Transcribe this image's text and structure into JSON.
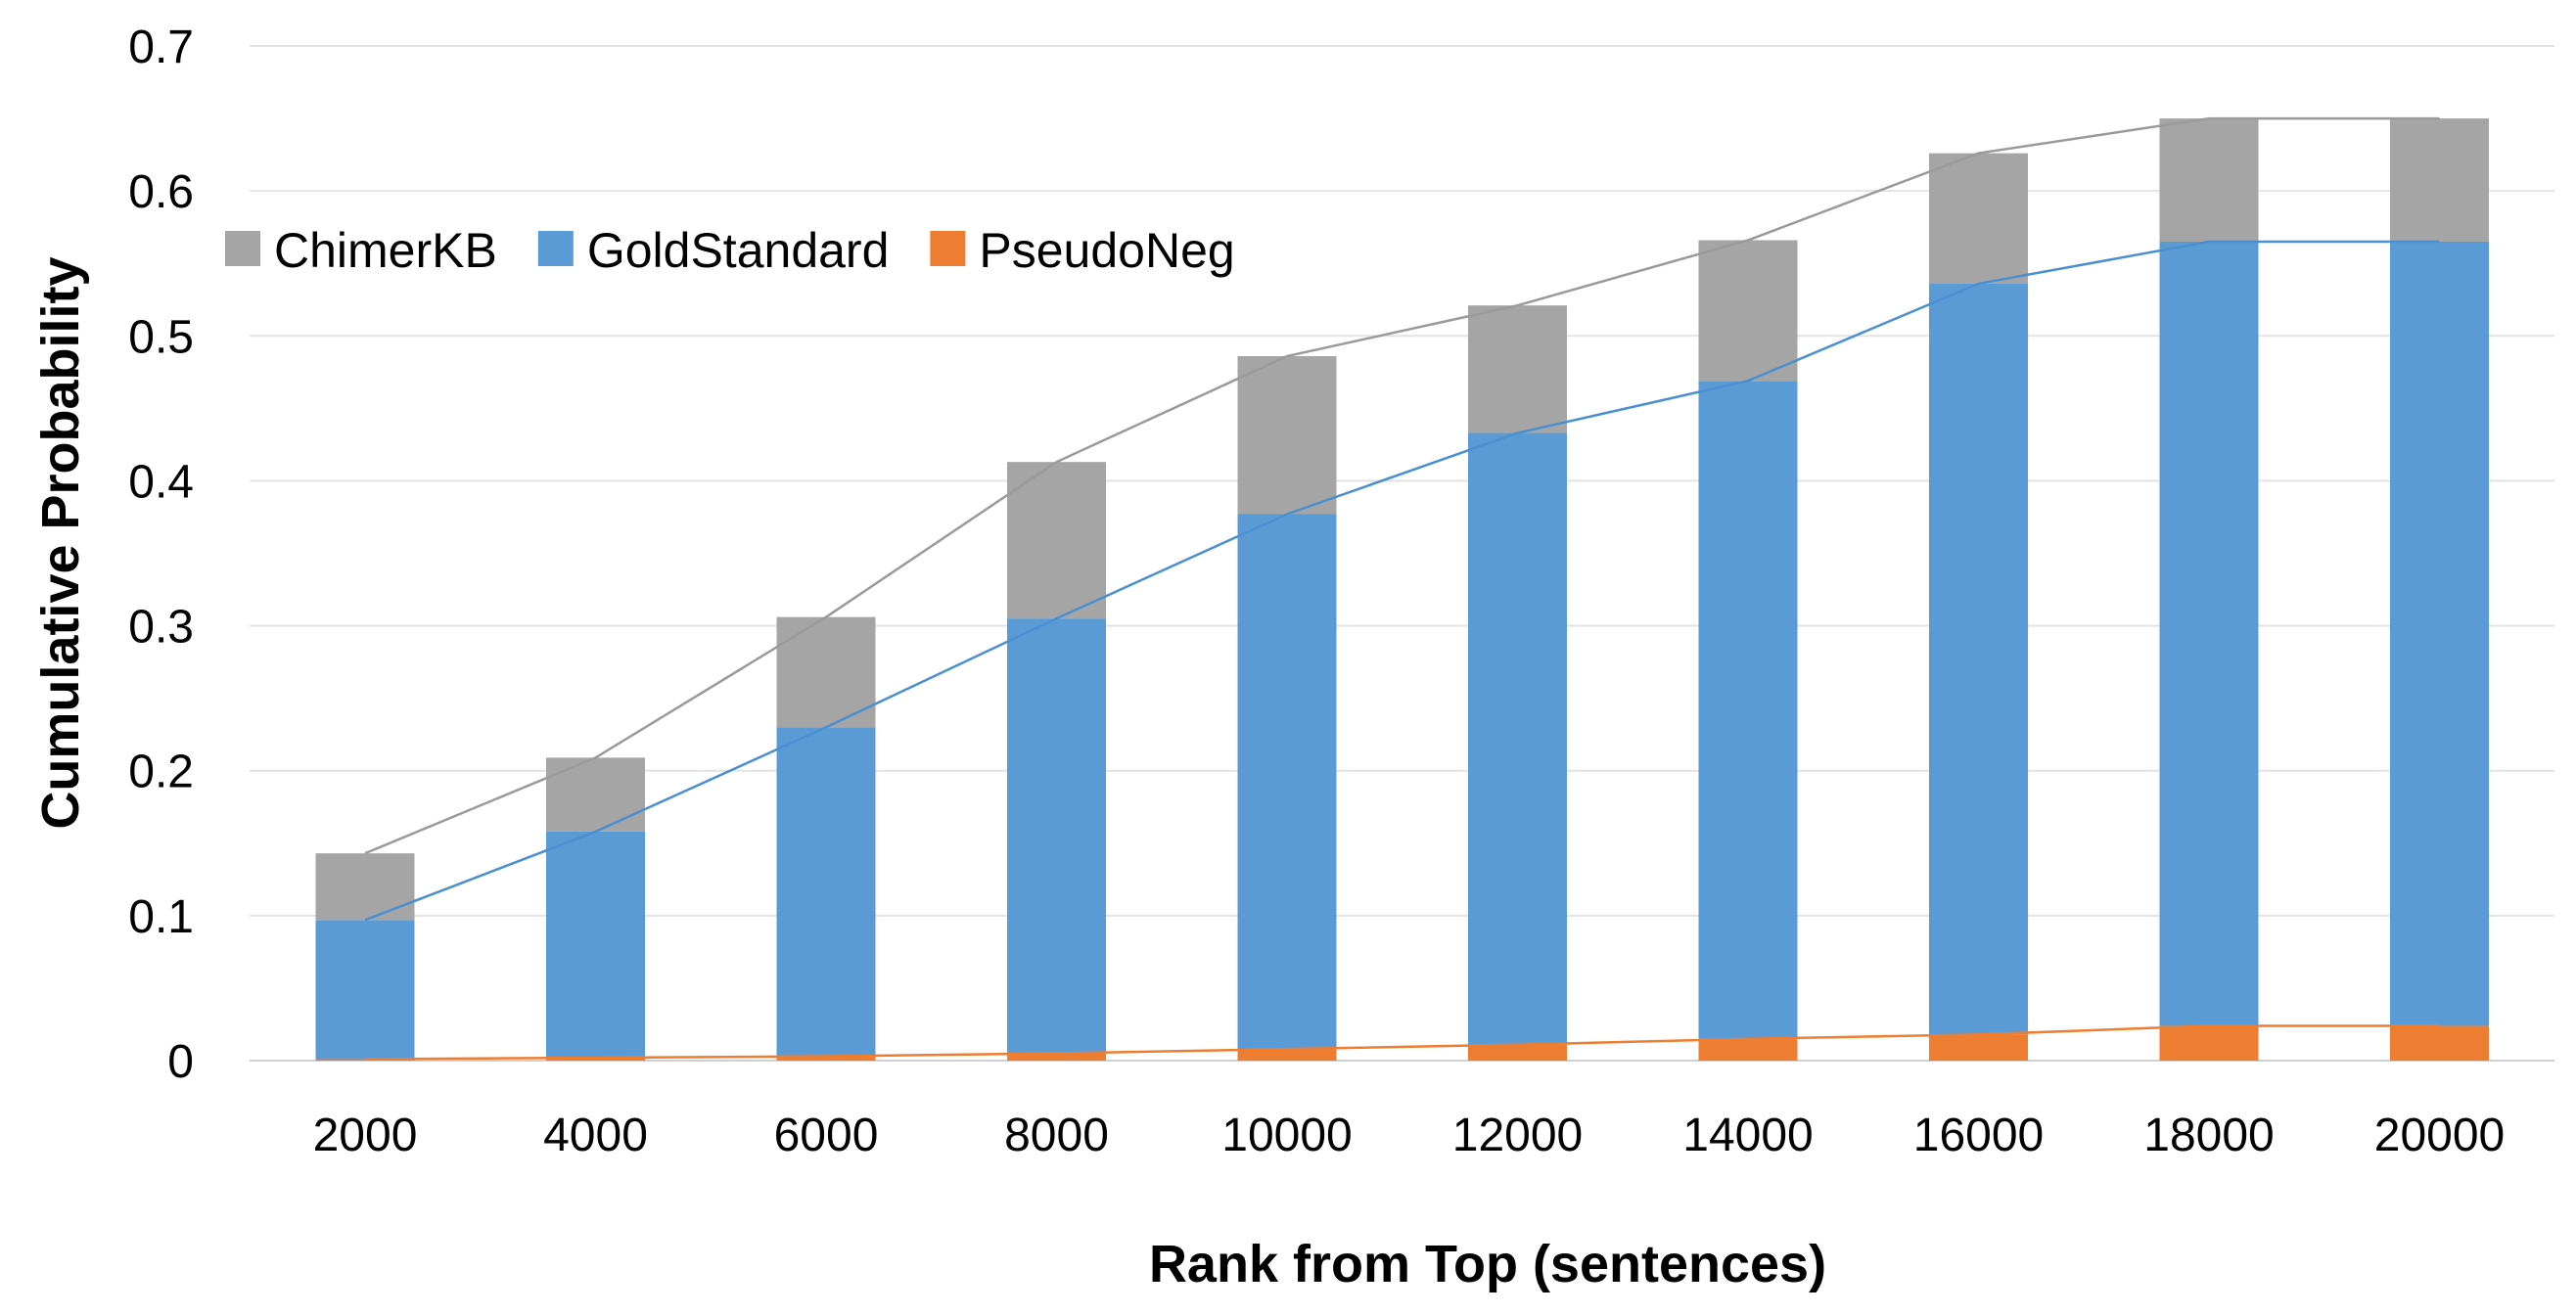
{
  "chart_data": {
    "type": "bar",
    "stacked": true,
    "overlay_lines": true,
    "xlabel": "Rank from Top (sentences)",
    "ylabel": "Cumulative Probability",
    "ylim": [
      0,
      0.7
    ],
    "yticks": [
      "0",
      "0.1",
      "0.2",
      "0.3",
      "0.4",
      "0.5",
      "0.6",
      "0.7"
    ],
    "grid": true,
    "legend_position": "top-left",
    "categories": [
      "2000",
      "4000",
      "6000",
      "8000",
      "10000",
      "12000",
      "14000",
      "16000",
      "18000",
      "20000"
    ],
    "series": [
      {
        "name": "ChimerKB",
        "color": "#a5a5a5",
        "line_color": "#9a9a9a",
        "cumulative_values": [
          0.143,
          0.209,
          0.306,
          0.413,
          0.486,
          0.521,
          0.566,
          0.626,
          0.65,
          0.65
        ]
      },
      {
        "name": "GoldStandard",
        "color": "#5b9bd5",
        "line_color": "#4a90d0",
        "cumulative_values": [
          0.097,
          0.158,
          0.23,
          0.305,
          0.377,
          0.433,
          0.469,
          0.536,
          0.565,
          0.565
        ]
      },
      {
        "name": "PseudoNeg",
        "color": "#ed7d31",
        "line_color": "#ed7d31",
        "cumulative_values": [
          0.001,
          0.002,
          0.003,
          0.005,
          0.008,
          0.011,
          0.015,
          0.018,
          0.024,
          0.024
        ]
      }
    ]
  }
}
